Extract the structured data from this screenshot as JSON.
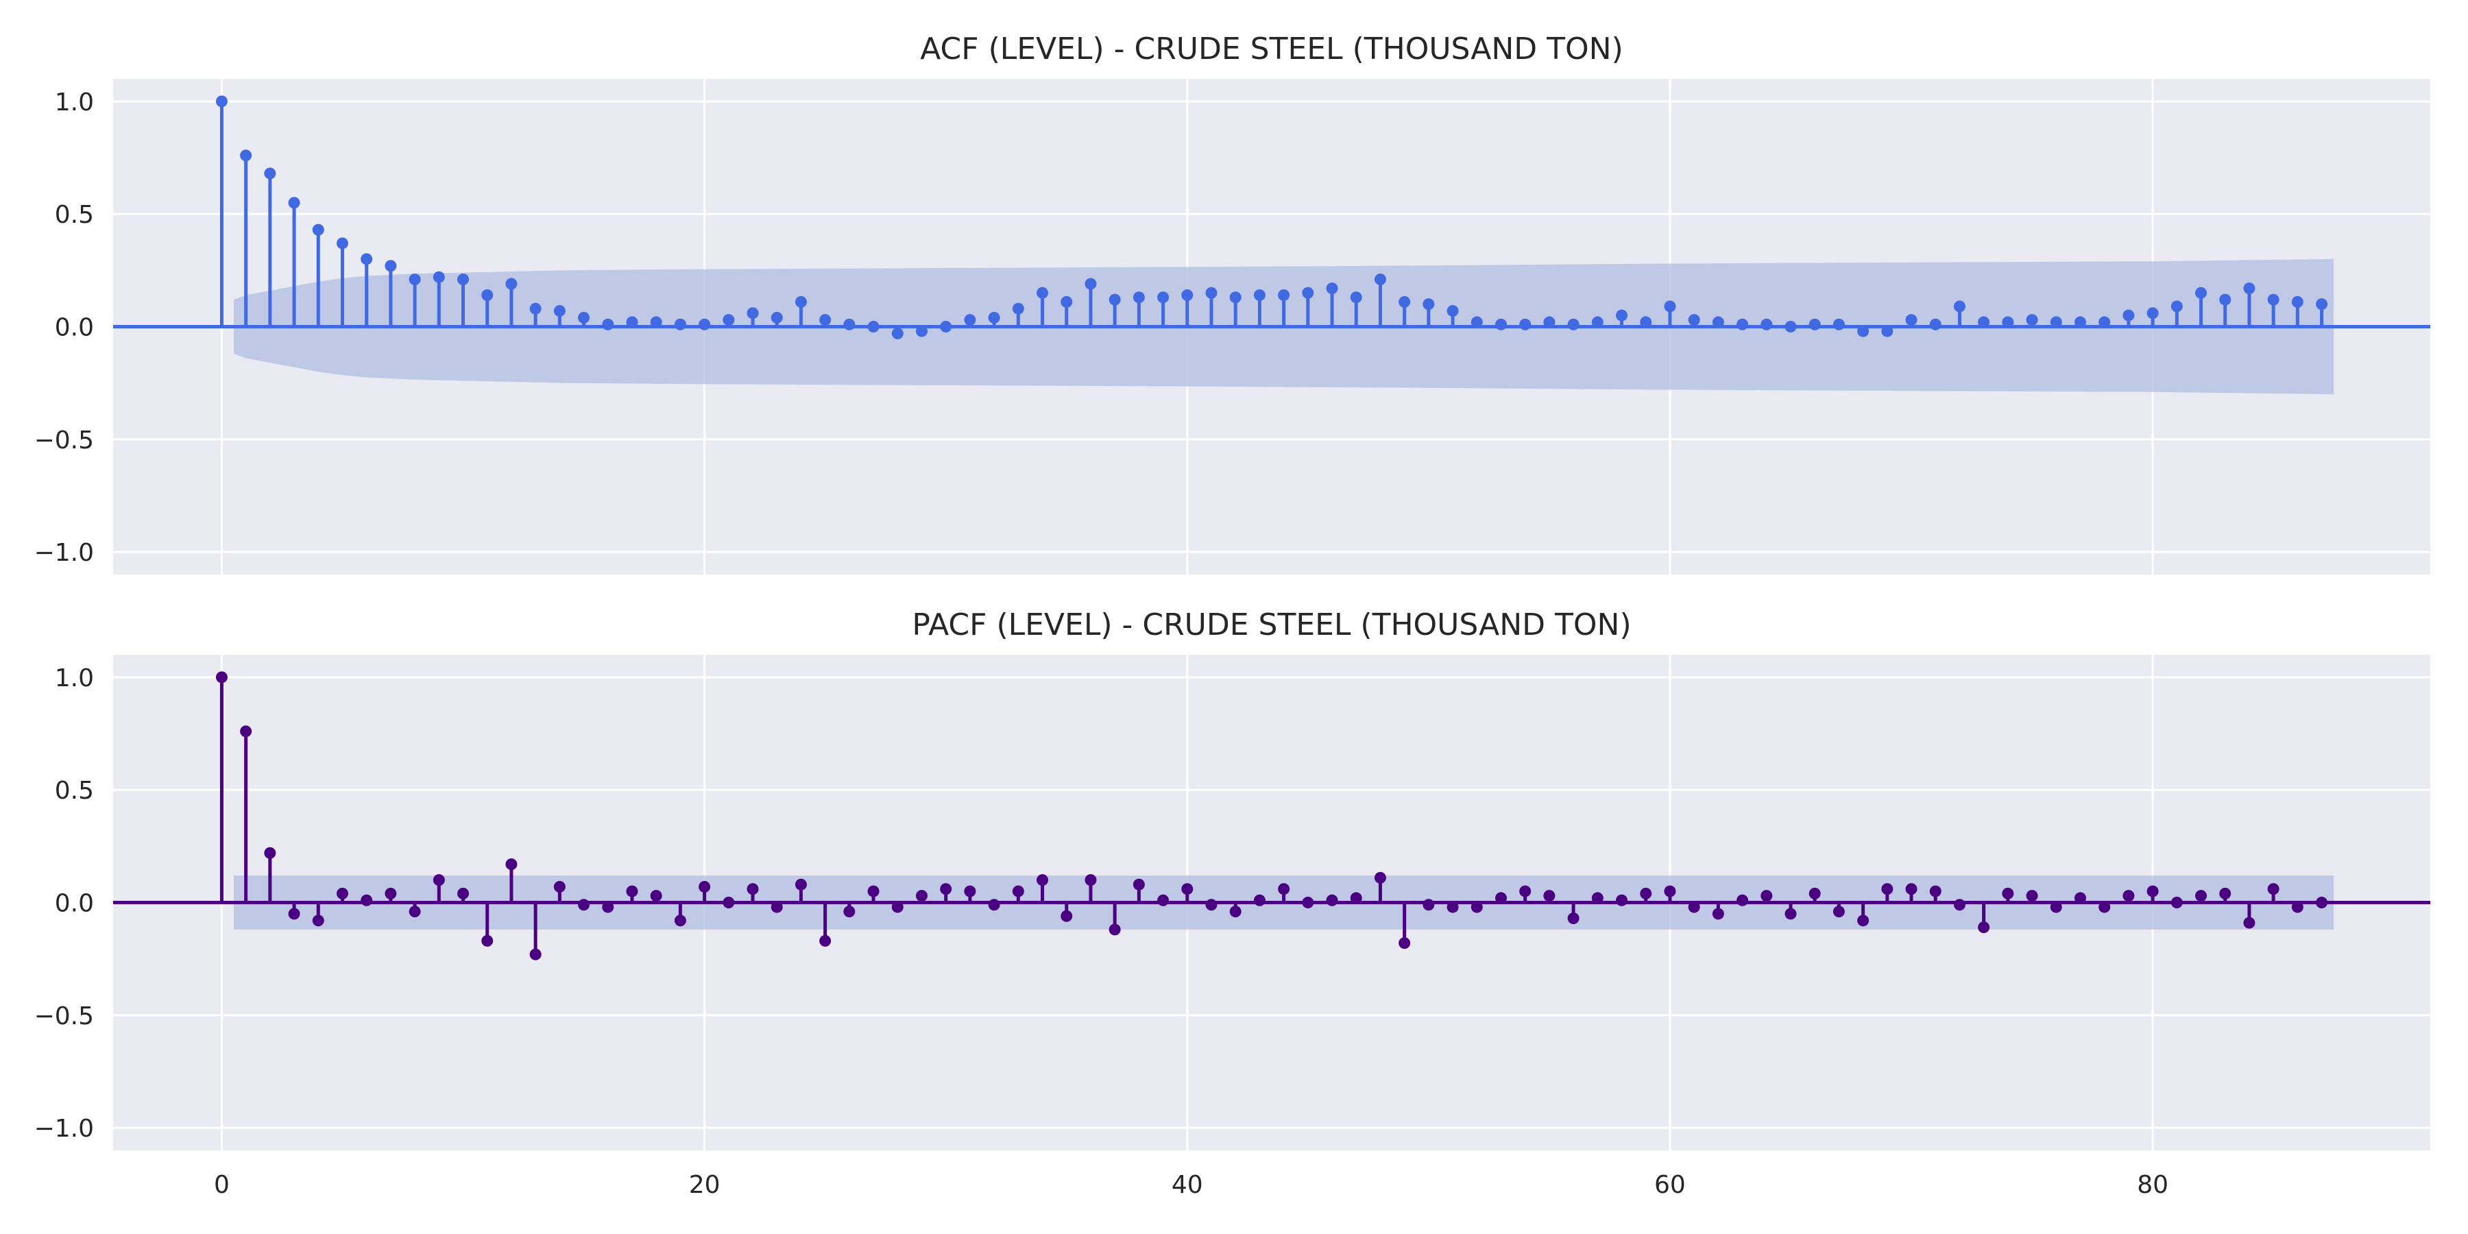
{
  "chart_data": [
    {
      "type": "stem",
      "title": "ACF (LEVEL) - CRUDE STEEL (THOUSAND TON)",
      "xlabel": "",
      "ylabel": "",
      "xlim": [
        -4.5,
        91.5
      ],
      "ylim": [
        -1.1,
        1.1
      ],
      "yticks": [
        1.0,
        0.5,
        0.0,
        -0.5,
        -1.0
      ],
      "ytick_labels": [
        "1.0",
        "0.5",
        "0.0",
        "−0.5",
        "−1.0"
      ],
      "xticks": [
        0,
        20,
        40,
        60,
        80
      ],
      "xtick_labels": [
        "0",
        "20",
        "40",
        "60",
        "80"
      ],
      "grid": true,
      "color": "#4169e1",
      "band_color": "#b0bde0",
      "lags_start": 0,
      "values": [
        1.0,
        0.76,
        0.68,
        0.55,
        0.43,
        0.37,
        0.3,
        0.27,
        0.21,
        0.22,
        0.21,
        0.14,
        0.19,
        0.08,
        0.07,
        0.04,
        0.01,
        0.02,
        0.02,
        0.01,
        0.01,
        0.03,
        0.06,
        0.04,
        0.11,
        0.03,
        0.01,
        0.0,
        -0.03,
        -0.02,
        0.0,
        0.03,
        0.04,
        0.08,
        0.15,
        0.11,
        0.19,
        0.12,
        0.13,
        0.13,
        0.14,
        0.15,
        0.13,
        0.14,
        0.14,
        0.15,
        0.17,
        0.13,
        0.21,
        0.11,
        0.1,
        0.07,
        0.02,
        0.01,
        0.01,
        0.02,
        0.01,
        0.02,
        0.05,
        0.02,
        0.09,
        0.03,
        0.02,
        0.01,
        0.01,
        0.0,
        0.01,
        0.01,
        -0.02,
        -0.02,
        0.03,
        0.01,
        0.09,
        0.02,
        0.02,
        0.03,
        0.02,
        0.02,
        0.02,
        0.05,
        0.06,
        0.09,
        0.15,
        0.12,
        0.17,
        0.12,
        0.11,
        0.1
      ],
      "confint_lags": [
        0.5,
        1,
        2,
        3,
        4,
        5,
        6,
        8,
        10,
        12,
        14,
        20,
        30,
        40,
        48,
        60,
        70,
        80,
        87.5
      ],
      "confint_upper": [
        0.12,
        0.14,
        0.16,
        0.18,
        0.2,
        0.215,
        0.225,
        0.235,
        0.24,
        0.245,
        0.25,
        0.255,
        0.26,
        0.265,
        0.27,
        0.28,
        0.285,
        0.29,
        0.3
      ]
    },
    {
      "type": "stem",
      "title": "PACF (LEVEL) - CRUDE STEEL (THOUSAND TON)",
      "xlabel": "",
      "ylabel": "",
      "xlim": [
        -4.5,
        91.5
      ],
      "ylim": [
        -1.1,
        1.1
      ],
      "yticks": [
        1.0,
        0.5,
        0.0,
        -0.5,
        -1.0
      ],
      "ytick_labels": [
        "1.0",
        "0.5",
        "0.0",
        "−0.5",
        "−1.0"
      ],
      "xticks": [
        0,
        20,
        40,
        60,
        80
      ],
      "xtick_labels": [
        "0",
        "20",
        "40",
        "60",
        "80"
      ],
      "grid": true,
      "color": "#4b0082",
      "band_color": "#b0bde0",
      "lags_start": 0,
      "values": [
        1.0,
        0.76,
        0.22,
        -0.05,
        -0.08,
        0.04,
        0.01,
        0.04,
        -0.04,
        0.1,
        0.04,
        -0.17,
        0.17,
        -0.23,
        0.07,
        -0.01,
        -0.02,
        0.05,
        0.03,
        -0.08,
        0.07,
        0.0,
        0.06,
        -0.02,
        0.08,
        -0.17,
        -0.04,
        0.05,
        -0.02,
        0.03,
        0.06,
        0.05,
        -0.01,
        0.05,
        0.1,
        -0.06,
        0.1,
        -0.12,
        0.08,
        0.01,
        0.06,
        -0.01,
        -0.04,
        0.01,
        0.06,
        0.0,
        0.01,
        0.02,
        0.11,
        -0.18,
        -0.01,
        -0.02,
        -0.02,
        0.02,
        0.05,
        0.03,
        -0.07,
        0.02,
        0.01,
        0.04,
        0.05,
        -0.02,
        -0.05,
        0.01,
        0.03,
        -0.05,
        0.04,
        -0.04,
        -0.08,
        0.06,
        0.06,
        0.05,
        -0.01,
        -0.11,
        0.04,
        0.03,
        -0.02,
        0.02,
        -0.02,
        0.03,
        0.05,
        0.0,
        0.03,
        0.04,
        -0.09,
        0.06,
        -0.02,
        0.0
      ],
      "confint_lags": [
        0.5,
        87.5
      ],
      "confint_upper": [
        0.12,
        0.12
      ]
    }
  ]
}
